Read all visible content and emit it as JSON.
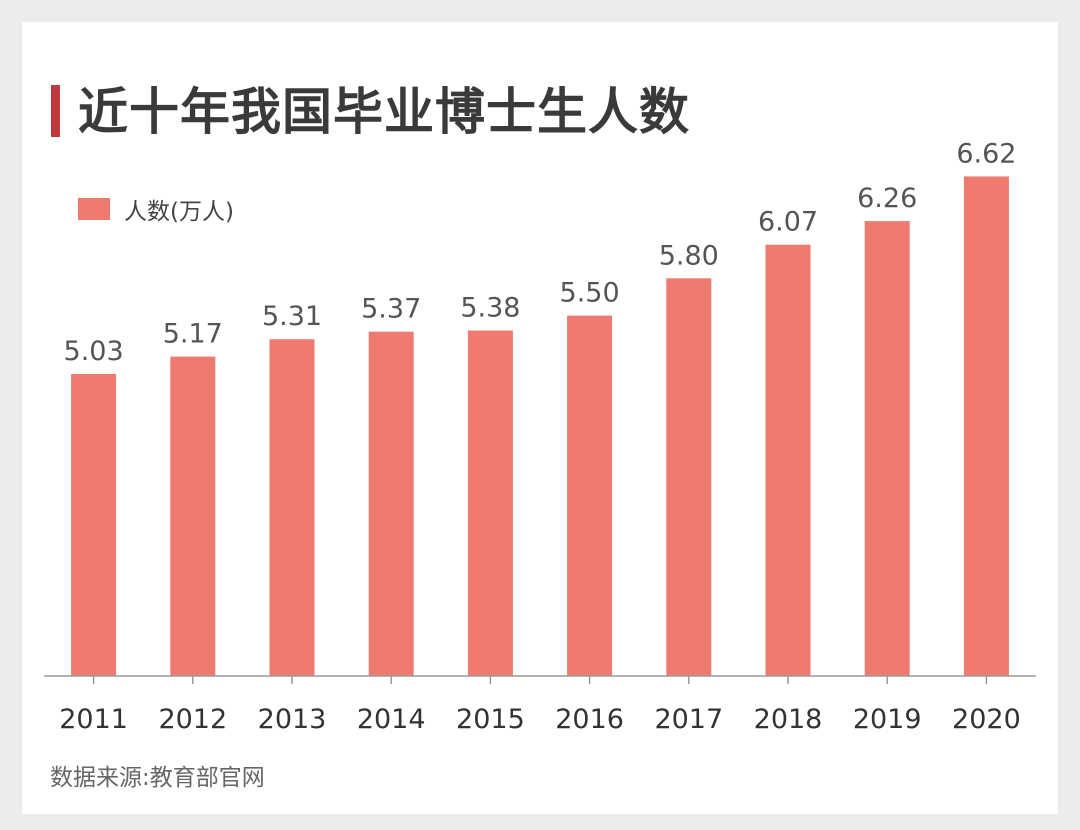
{
  "chart_data": {
    "type": "bar",
    "title": "近十年我国毕业博士生人数",
    "categories": [
      "2011",
      "2012",
      "2013",
      "2014",
      "2015",
      "2016",
      "2017",
      "2018",
      "2019",
      "2020"
    ],
    "series": [
      {
        "name": "人数(万人)",
        "values": [
          5.03,
          5.17,
          5.31,
          5.37,
          5.38,
          5.5,
          5.8,
          6.07,
          6.26,
          6.62
        ],
        "labels": [
          "5.03",
          "5.17",
          "5.31",
          "5.37",
          "5.38",
          "5.50",
          "5.80",
          "6.07",
          "6.26",
          "6.62"
        ]
      }
    ],
    "legend_position": "top-left",
    "grid": false,
    "source": "数据来源:教育部官网"
  },
  "colors": {
    "bar": "#ef7b70",
    "accent": "#c0393f",
    "axis": "#999999"
  }
}
